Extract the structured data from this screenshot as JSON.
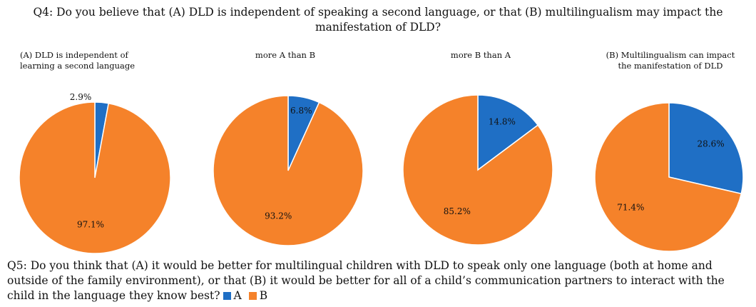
{
  "q4_title": "Q4: Do you believe that (A) DLD is independent of speaking a second language, or that (B) multilingualism may impact the manifestation of DLD?",
  "q5_text": "Q5: Do you think that (A) it would be better for multilingual children with DLD to speak only one language (both at home and outside of the family environment), or that (B) it would be better for all of a child’s communication partners to interact with the child in the language they know best?",
  "colors": {
    "A": "#1f6fc5",
    "B": "#f5822a"
  },
  "legend": [
    {
      "key": "A",
      "label": "A",
      "color": "#1f6fc5"
    },
    {
      "key": "B",
      "label": "B",
      "color": "#f5822a"
    }
  ],
  "chart_data": [
    {
      "type": "pie",
      "title": "(A) DLD is independent of\nlearning a second language",
      "categories": [
        "A",
        "B"
      ],
      "values": [
        2.9,
        97.1
      ],
      "labels": [
        "2.9%",
        "97.1%"
      ]
    },
    {
      "type": "pie",
      "title": "more A than B",
      "categories": [
        "A",
        "B"
      ],
      "values": [
        6.8,
        93.2
      ],
      "labels": [
        "6.8%",
        "93.2%"
      ]
    },
    {
      "type": "pie",
      "title": "more B than A",
      "categories": [
        "A",
        "B"
      ],
      "values": [
        14.8,
        85.2
      ],
      "labels": [
        "14.8%",
        "85.2%"
      ]
    },
    {
      "type": "pie",
      "title": "(B) Multilingualism  can impact\nthe manifestation of DLD",
      "categories": [
        "A",
        "B"
      ],
      "values": [
        28.6,
        71.4
      ],
      "labels": [
        "28.6%",
        "71.4%"
      ]
    }
  ]
}
